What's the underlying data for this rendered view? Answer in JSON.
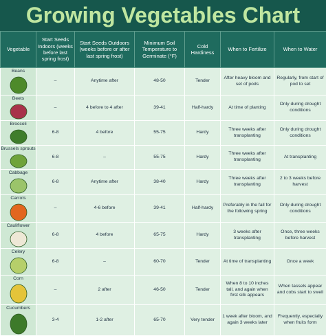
{
  "header": {
    "title": "Growing Vegetables Chart"
  },
  "table": {
    "columns": [
      "Vegetable",
      "Start Seeds Indoors (weeks before last spring frost)",
      "Start Seeds Outdoors (weeks before or after last spring frost)",
      "Minimum Soil Temperature to Germinate (°F)",
      "Cold Hardiness",
      "When to Fertilize",
      "When to Water"
    ],
    "rows": [
      [
        "Beans",
        "–",
        "Anytime after",
        "48-50",
        "Tender",
        "After heavy bloom and set of pods",
        "Regularly, from start of pod to set"
      ],
      [
        "Beets",
        "–",
        "4 before to 4 after",
        "39-41",
        "Half-hardy",
        "At time of planting",
        "Only during drought conditions"
      ],
      [
        "Broccoli",
        "6-8",
        "4 before",
        "55-75",
        "Hardy",
        "Three weeks after transplanting",
        "Only during drought conditions"
      ],
      [
        "Brussels sprouts",
        "6-8",
        "–",
        "55-75",
        "Hardy",
        "Three weeks after transplanting",
        "At transplanting"
      ],
      [
        "Cabbage",
        "6-8",
        "Anytime after",
        "38-40",
        "Hardy",
        "Three weeks after transplanting",
        "2 to 3 weeks before harvest"
      ],
      [
        "Carrots",
        "–",
        "4-6 before",
        "39-41",
        "Half-hardy",
        "Preferably in the fall for the following spring",
        "Only during drought conditions"
      ],
      [
        "Cauliflower",
        "6-8",
        "4 before",
        "65-75",
        "Hardy",
        "3 weeks after transplanting",
        "Once, three weeks before harvest"
      ],
      [
        "Celery",
        "6-8",
        "–",
        "60-70",
        "Tender",
        "At time of transplanting",
        "Once a week"
      ],
      [
        "Corn",
        "–",
        "2 after",
        "46-50",
        "Tender",
        "When 8 to 10 inches tall, and again when first silk appears",
        "When tassels appear and cobs start to swell"
      ],
      [
        "Cucumbers",
        "3-4",
        "1-2 after",
        "65-70",
        "Very tender",
        "1 week after bloom, and again 3 weeks later",
        "Frequently, especially when fruits form"
      ]
    ]
  }
}
